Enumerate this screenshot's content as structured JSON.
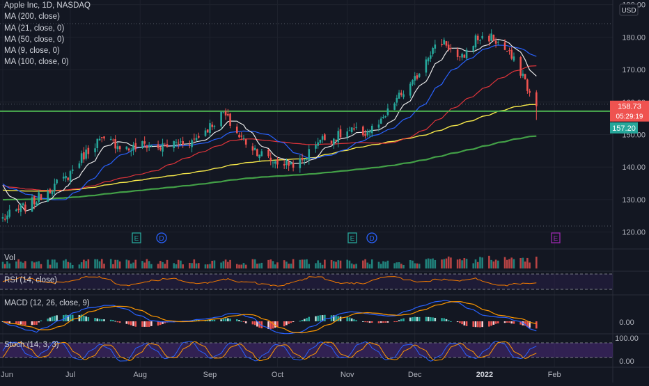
{
  "header": {
    "symbol_title": "Apple Inc, 1D, NASDAQ",
    "indicators": [
      "MA (200, close)",
      "MA (21, close, 0)",
      "MA (50, close, 0)",
      "MA (9, close, 0)",
      "MA (100, close, 0)"
    ]
  },
  "currency": "USD",
  "price_labels": {
    "last_price": "158.73",
    "countdown": "05:29:19",
    "support": "157.20"
  },
  "price_axis_ticks": [
    "190.00",
    "180.00",
    "170.00",
    "160.00",
    "150.00",
    "140.00",
    "130.00",
    "120.00"
  ],
  "time_axis_ticks": [
    "Jun",
    "Jul",
    "Aug",
    "Sep",
    "Oct",
    "Nov",
    "Dec",
    "2022",
    "Feb"
  ],
  "markers": [
    "E",
    "D",
    "E",
    "D",
    "E"
  ],
  "panes": {
    "volume": "Vol",
    "rsi": "RSI (14, close)",
    "macd": "MACD (12, 26, close, 9)",
    "macd_ticks": [
      "0.00"
    ],
    "stoch": "Stoch (14, 3, 3)",
    "stoch_ticks": [
      "100.00",
      "0.00"
    ]
  },
  "colors": {
    "background": "#131722",
    "up": "#26a69a",
    "down": "#ef5350",
    "ma9": "#e8e8e8",
    "ma21": "#2962ff",
    "ma50": "#e0343a",
    "ma100": "#f7e94a",
    "ma200": "#43a047",
    "support_line": "#4caf50",
    "stoch_band": "#4a2a7a",
    "macd_signal": "#ff9800"
  },
  "chart_data": {
    "type": "candlestick",
    "title": "Apple Inc, 1D, NASDAQ",
    "ylim": [
      118,
      191
    ],
    "support_level": 157.2,
    "last_price": 158.73,
    "anchor_closes": [
      [
        "2021-06-01",
        124.3
      ],
      [
        "2021-06-08",
        126.7
      ],
      [
        "2021-06-15",
        129.5
      ],
      [
        "2021-06-22",
        133.5
      ],
      [
        "2021-06-29",
        136.5
      ],
      [
        "2021-07-06",
        143.0
      ],
      [
        "2021-07-13",
        148.0
      ],
      [
        "2021-07-20",
        147.5
      ],
      [
        "2021-07-27",
        145.5
      ],
      [
        "2021-08-03",
        147.0
      ],
      [
        "2021-08-10",
        146.0
      ],
      [
        "2021-08-17",
        147.5
      ],
      [
        "2021-08-24",
        148.0
      ],
      [
        "2021-08-31",
        152.0
      ],
      [
        "2021-09-07",
        156.5
      ],
      [
        "2021-09-14",
        149.5
      ],
      [
        "2021-09-21",
        145.5
      ],
      [
        "2021-09-28",
        142.0
      ],
      [
        "2021-10-05",
        141.0
      ],
      [
        "2021-10-12",
        141.5
      ],
      [
        "2021-10-19",
        148.5
      ],
      [
        "2021-10-26",
        149.0
      ],
      [
        "2021-11-02",
        151.0
      ],
      [
        "2021-11-09",
        150.5
      ],
      [
        "2021-11-16",
        153.5
      ],
      [
        "2021-11-23",
        161.0
      ],
      [
        "2021-11-30",
        165.5
      ],
      [
        "2021-12-07",
        175.0
      ],
      [
        "2021-12-14",
        179.0
      ],
      [
        "2021-12-21",
        172.5
      ],
      [
        "2021-12-28",
        179.5
      ],
      [
        "2022-01-04",
        180.0
      ],
      [
        "2022-01-11",
        175.5
      ],
      [
        "2022-01-18",
        168.5
      ],
      [
        "2022-01-21",
        162.5
      ],
      [
        "2022-01-24",
        158.73
      ]
    ],
    "moving_averages": [
      {
        "name": "MA (9, close, 0)",
        "period": 9,
        "color": "#e8e8e8"
      },
      {
        "name": "MA (21, close, 0)",
        "period": 21,
        "color": "#2962ff"
      },
      {
        "name": "MA (50, close, 0)",
        "period": 50,
        "color": "#e0343a"
      },
      {
        "name": "MA (100, close, 0)",
        "period": 100,
        "color": "#f7e94a"
      },
      {
        "name": "MA (200, close)",
        "period": 200,
        "color": "#43a047"
      }
    ],
    "stoch_band": [
      20,
      80
    ],
    "rsi_band": [
      30,
      70
    ]
  }
}
